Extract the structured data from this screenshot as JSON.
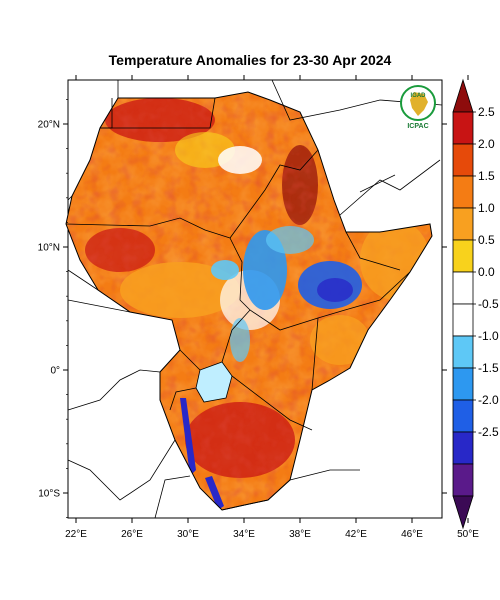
{
  "title": "Temperature Anomalies for 23-30 Apr 2024",
  "map": {
    "lat_ticks": [
      {
        "lat": 20,
        "label": "20°N"
      },
      {
        "lat": 10,
        "label": "10°N"
      },
      {
        "lat": 0,
        "label": "0°"
      },
      {
        "lat": -10,
        "label": "10°S"
      }
    ],
    "lon_ticks": [
      {
        "lon": 22,
        "label": "22°E"
      },
      {
        "lon": 26,
        "label": "26°E"
      },
      {
        "lon": 30,
        "label": "30°E"
      },
      {
        "lon": 34,
        "label": "34°E"
      },
      {
        "lon": 38,
        "label": "38°E"
      },
      {
        "lon": 42,
        "label": "42°E"
      },
      {
        "lon": 46,
        "label": "46°E"
      },
      {
        "lon": 50,
        "label": "50°E"
      }
    ]
  },
  "logo": {
    "top_text": "IGAD",
    "bottom_text": "ICPAC",
    "colors": {
      "ring": "#1a9b3c",
      "map": "#e1b12c",
      "text": "#1a7a34"
    }
  },
  "colorbar": {
    "colors": [
      "#3b0a55",
      "#5a1a8a",
      "#2828c8",
      "#1f5fe6",
      "#2d98f0",
      "#5ec8f6",
      "#ffffff",
      "#ffffff",
      "#f8d21c",
      "#f8a020",
      "#f47c14",
      "#e64a0a",
      "#c81414",
      "#8e0c0c"
    ],
    "labels": [
      "2.5",
      "2.0",
      "1.5",
      "1.0",
      "0.5",
      "0.0",
      "-0.5",
      "-1.0",
      "-1.5",
      "-2.0",
      "-2.5"
    ]
  }
}
